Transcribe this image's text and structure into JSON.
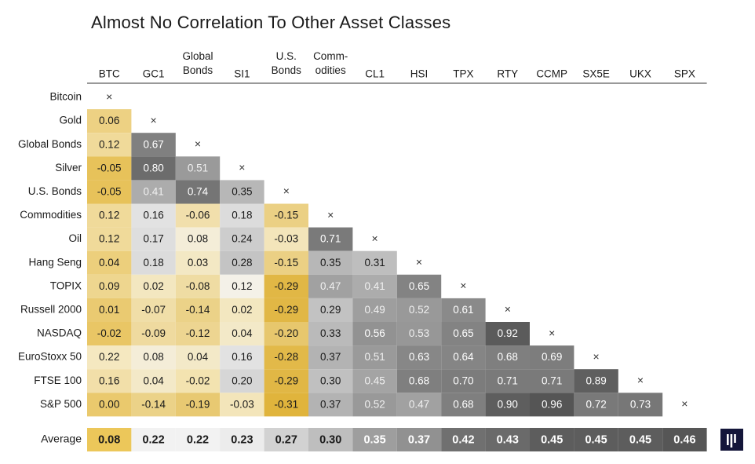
{
  "chart_data": {
    "type": "heatmap",
    "title": "Almost No Correlation To Other Asset Classes",
    "columns": [
      "BTC",
      "GC1",
      "Global\nBonds",
      "SI1",
      "U.S.\nBonds",
      "Comm-\nodities",
      "CL1",
      "HSI",
      "TPX",
      "RTY",
      "CCMP",
      "SX5E",
      "UKX",
      "SPX"
    ],
    "rows": [
      "Bitcoin",
      "Gold",
      "Global Bonds",
      "Silver",
      "U.S. Bonds",
      "Commodities",
      "Oil",
      "Hang Seng",
      "TOPIX",
      "Russell 2000",
      "NASDAQ",
      "EuroStoxx 50",
      "FTSE 100",
      "S&P 500"
    ],
    "diagonal_marker": "×",
    "values": [
      [],
      [
        "0.06"
      ],
      [
        "0.12",
        "0.67"
      ],
      [
        "-0.05",
        "0.80",
        "0.51"
      ],
      [
        "-0.05",
        "0.41",
        "0.74",
        "0.35"
      ],
      [
        "0.12",
        "0.16",
        "-0.06",
        "0.18",
        "-0.15"
      ],
      [
        "0.12",
        "0.17",
        "0.08",
        "0.24",
        "-0.03",
        "0.71"
      ],
      [
        "0.04",
        "0.18",
        "0.03",
        "0.28",
        "-0.15",
        "0.35",
        "0.31"
      ],
      [
        "0.09",
        "0.02",
        "-0.08",
        "0.12",
        "-0.29",
        "0.47",
        "0.41",
        "0.65"
      ],
      [
        "0.01",
        "-0.07",
        "-0.14",
        "0.02",
        "-0.29",
        "0.29",
        "0.49",
        "0.52",
        "0.61"
      ],
      [
        "-0.02",
        "-0.09",
        "-0.12",
        "0.04",
        "-0.20",
        "0.33",
        "0.56",
        "0.53",
        "0.65",
        "0.92"
      ],
      [
        "0.22",
        "0.08",
        "0.04",
        "0.16",
        "-0.28",
        "0.37",
        "0.51",
        "0.63",
        "0.64",
        "0.68",
        "0.69"
      ],
      [
        "0.16",
        "0.04",
        "-0.02",
        "0.20",
        "-0.29",
        "0.30",
        "0.45",
        "0.68",
        "0.70",
        "0.71",
        "0.71",
        "0.89"
      ],
      [
        "0.00",
        "-0.14",
        "-0.19",
        "-0.03",
        "-0.31",
        "0.37",
        "0.52",
        "0.47",
        "0.68",
        "0.90",
        "0.96",
        "0.72",
        "0.73"
      ]
    ],
    "average": {
      "label": "Average",
      "values": [
        "0.08",
        "0.22",
        "0.22",
        "0.23",
        "0.27",
        "0.30",
        "0.35",
        "0.37",
        "0.42",
        "0.43",
        "0.45",
        "0.45",
        "0.45",
        "0.46"
      ]
    },
    "color_scale": {
      "low": "#e0b43c",
      "mid": "#f4f4f4",
      "high": "#555555",
      "domain": [
        -0.31,
        0.96
      ],
      "first_column_hue": "#e7c25a"
    }
  },
  "logo": {
    "icon": "pantera-logo-icon",
    "color": "#14163a"
  }
}
